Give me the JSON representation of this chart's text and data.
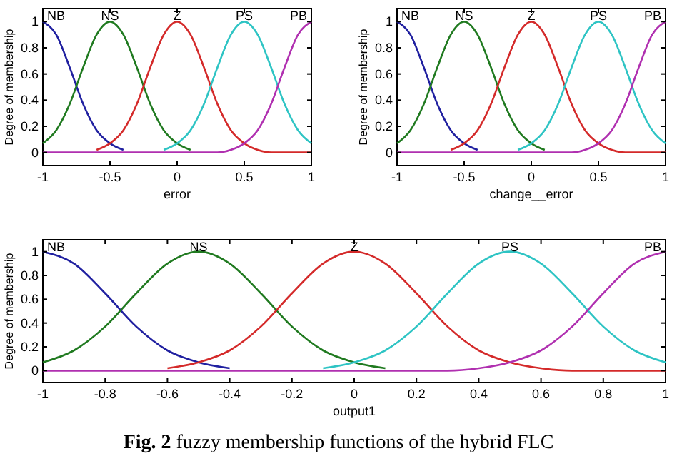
{
  "chart_data": [
    {
      "type": "line",
      "xlabel": "error",
      "ylabel": "Degree of membership",
      "x": [
        -1,
        -0.9,
        -0.8,
        -0.7,
        -0.6,
        -0.5,
        -0.4,
        -0.3,
        -0.2,
        -0.1,
        0,
        0.1,
        0.2,
        0.3,
        0.4,
        0.5,
        0.6,
        0.7,
        0.8,
        0.9,
        1
      ],
      "xlim": [
        -1,
        1
      ],
      "ylim": [
        -0.1,
        1.1
      ],
      "xticks": [
        -1,
        -0.5,
        0,
        0.5,
        1
      ],
      "yticks": [
        0,
        0.2,
        0.4,
        0.6,
        0.8,
        1
      ],
      "series": [
        {
          "name": "NB",
          "color": "#2020a0",
          "values": [
            1,
            0.9,
            0.65,
            0.37,
            0.17,
            0.07,
            0.02,
            null,
            null,
            null,
            null,
            null,
            null,
            null,
            null,
            null,
            null,
            null,
            null,
            null,
            null
          ]
        },
        {
          "name": "NS",
          "color": "#207a20",
          "values": [
            0.07,
            0.17,
            0.37,
            0.65,
            0.9,
            1,
            0.9,
            0.65,
            0.37,
            0.17,
            0.07,
            0.02,
            null,
            null,
            null,
            null,
            null,
            null,
            null,
            null,
            null
          ]
        },
        {
          "name": "Z",
          "color": "#d42a2a",
          "values": [
            null,
            null,
            null,
            null,
            0.02,
            0.07,
            0.17,
            0.37,
            0.65,
            0.9,
            1,
            0.9,
            0.65,
            0.37,
            0.17,
            0.07,
            0.02,
            0,
            0,
            0,
            0
          ]
        },
        {
          "name": "PS",
          "color": "#2ec4c4",
          "values": [
            null,
            null,
            null,
            null,
            null,
            null,
            null,
            null,
            null,
            0.02,
            0.07,
            0.17,
            0.37,
            0.65,
            0.9,
            1,
            0.9,
            0.65,
            0.37,
            0.17,
            0.07
          ]
        },
        {
          "name": "PB",
          "color": "#b030b0",
          "values": [
            0,
            0,
            0,
            0,
            0,
            0,
            0,
            0,
            0,
            0,
            0,
            0,
            0,
            0,
            0.02,
            0.07,
            0.17,
            0.37,
            0.65,
            0.9,
            1
          ]
        }
      ]
    },
    {
      "type": "line",
      "xlabel": "change__error",
      "ylabel": "Degree of membership",
      "x": [
        -1,
        -0.9,
        -0.8,
        -0.7,
        -0.6,
        -0.5,
        -0.4,
        -0.3,
        -0.2,
        -0.1,
        0,
        0.1,
        0.2,
        0.3,
        0.4,
        0.5,
        0.6,
        0.7,
        0.8,
        0.9,
        1
      ],
      "xlim": [
        -1,
        1
      ],
      "ylim": [
        -0.1,
        1.1
      ],
      "xticks": [
        -1,
        -0.5,
        0,
        0.5,
        1
      ],
      "yticks": [
        0,
        0.2,
        0.4,
        0.6,
        0.8,
        1
      ],
      "series": [
        {
          "name": "NB",
          "color": "#2020a0",
          "values": [
            1,
            0.9,
            0.65,
            0.37,
            0.17,
            0.07,
            0.02,
            null,
            null,
            null,
            null,
            null,
            null,
            null,
            null,
            null,
            null,
            null,
            null,
            null,
            null
          ]
        },
        {
          "name": "NS",
          "color": "#207a20",
          "values": [
            0.07,
            0.17,
            0.37,
            0.65,
            0.9,
            1,
            0.9,
            0.65,
            0.37,
            0.17,
            0.07,
            0.02,
            null,
            null,
            null,
            null,
            null,
            null,
            null,
            null,
            null
          ]
        },
        {
          "name": "Z",
          "color": "#d42a2a",
          "values": [
            null,
            null,
            null,
            null,
            0.02,
            0.07,
            0.17,
            0.37,
            0.65,
            0.9,
            1,
            0.9,
            0.65,
            0.37,
            0.17,
            0.07,
            0.02,
            0,
            0,
            0,
            0
          ]
        },
        {
          "name": "PS",
          "color": "#2ec4c4",
          "values": [
            null,
            null,
            null,
            null,
            null,
            null,
            null,
            null,
            null,
            0.02,
            0.07,
            0.17,
            0.37,
            0.65,
            0.9,
            1,
            0.9,
            0.65,
            0.37,
            0.17,
            0.07
          ]
        },
        {
          "name": "PB",
          "color": "#b030b0",
          "values": [
            0,
            0,
            0,
            0,
            0,
            0,
            0,
            0,
            0,
            0,
            0,
            0,
            0,
            0,
            0.02,
            0.07,
            0.17,
            0.37,
            0.65,
            0.9,
            1
          ]
        }
      ]
    },
    {
      "type": "line",
      "xlabel": "output1",
      "ylabel": "Degree of membership",
      "x": [
        -1,
        -0.9,
        -0.8,
        -0.7,
        -0.6,
        -0.5,
        -0.4,
        -0.3,
        -0.2,
        -0.1,
        0,
        0.1,
        0.2,
        0.3,
        0.4,
        0.5,
        0.6,
        0.7,
        0.8,
        0.9,
        1
      ],
      "xlim": [
        -1,
        1
      ],
      "ylim": [
        -0.1,
        1.1
      ],
      "xticks": [
        -1,
        -0.8,
        -0.6,
        -0.4,
        -0.2,
        0,
        0.2,
        0.4,
        0.6,
        0.8,
        1
      ],
      "yticks": [
        0,
        0.2,
        0.4,
        0.6,
        0.8,
        1
      ],
      "annotations": [
        "Fig. 2 fuzzy membership functions of the hybrid FLC"
      ],
      "series": [
        {
          "name": "NB",
          "color": "#2020a0",
          "values": [
            1,
            0.9,
            0.65,
            0.37,
            0.17,
            0.07,
            0.02,
            null,
            null,
            null,
            null,
            null,
            null,
            null,
            null,
            null,
            null,
            null,
            null,
            null,
            null
          ]
        },
        {
          "name": "NS",
          "color": "#207a20",
          "values": [
            0.07,
            0.17,
            0.37,
            0.65,
            0.9,
            1,
            0.9,
            0.65,
            0.37,
            0.17,
            0.07,
            0.02,
            null,
            null,
            null,
            null,
            null,
            null,
            null,
            null,
            null
          ]
        },
        {
          "name": "Z",
          "color": "#d42a2a",
          "values": [
            null,
            null,
            null,
            null,
            0.02,
            0.07,
            0.17,
            0.37,
            0.65,
            0.9,
            1,
            0.9,
            0.65,
            0.37,
            0.17,
            0.07,
            0.02,
            0,
            0,
            0,
            0
          ]
        },
        {
          "name": "PS",
          "color": "#2ec4c4",
          "values": [
            null,
            null,
            null,
            null,
            null,
            null,
            null,
            null,
            null,
            0.02,
            0.07,
            0.17,
            0.37,
            0.65,
            0.9,
            1,
            0.9,
            0.65,
            0.37,
            0.17,
            0.07
          ]
        },
        {
          "name": "PB",
          "color": "#b030b0",
          "values": [
            0,
            0,
            0,
            0,
            0,
            0,
            0,
            0,
            0,
            0,
            0,
            0,
            0,
            0,
            0.02,
            0.07,
            0.17,
            0.37,
            0.65,
            0.9,
            1
          ]
        }
      ]
    }
  ]
}
